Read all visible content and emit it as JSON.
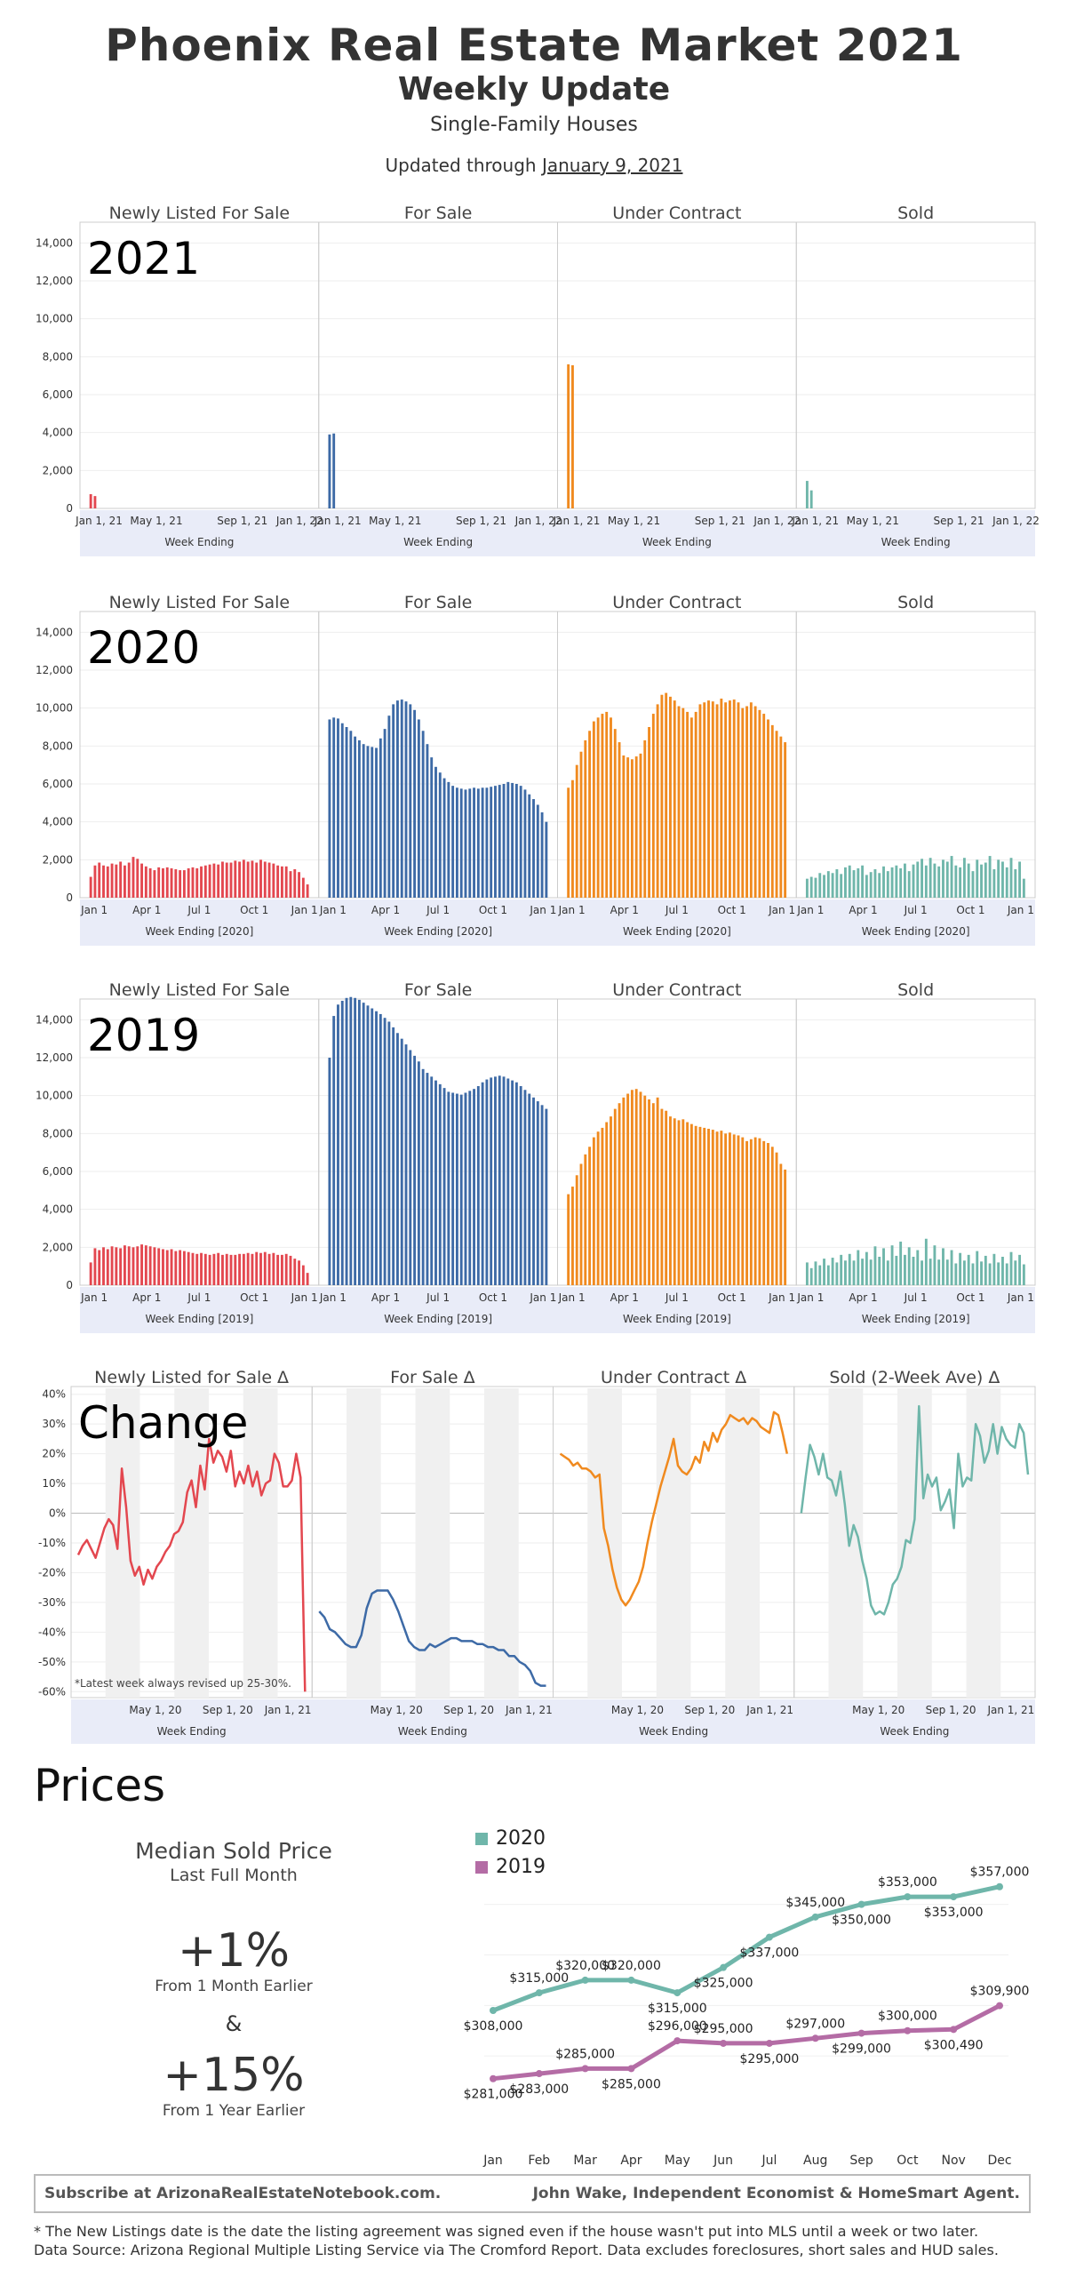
{
  "header": {
    "title": "Phoenix Real Estate Market 2021",
    "subtitle": "Weekly Update",
    "subsubtitle": "Single-Family Houses",
    "updated_prefix": "Updated through ",
    "updated_date": "January 9, 2021"
  },
  "colors": {
    "new": "#e3474f",
    "forsale": "#3d6aa6",
    "contract": "#f08a1f",
    "sold": "#6fb6aa",
    "p2020": "#6fb6aa",
    "p2019": "#b46ca5",
    "band": "#e9ecf8"
  },
  "chart_data": [
    {
      "type": "bar",
      "year_label": "2021",
      "panels": [
        "Newly Listed For Sale",
        "For Sale",
        "Under Contract",
        "Sold"
      ],
      "ylim": [
        0,
        15000
      ],
      "yticks": [
        "0",
        "2,000",
        "4,000",
        "6,000",
        "8,000",
        "10,000",
        "12,000",
        "14,000"
      ],
      "xticks": [
        "Jan 1, 21",
        "May 1, 21",
        "Sep 1, 21",
        "Jan 1, 22"
      ],
      "xlabel": "Week Ending",
      "series": [
        {
          "name": "Newly Listed For Sale",
          "values": [
            750,
            650
          ]
        },
        {
          "name": "For Sale",
          "values": [
            3900,
            3950
          ]
        },
        {
          "name": "Under Contract",
          "values": [
            7600,
            7550
          ]
        },
        {
          "name": "Sold",
          "values": [
            1450,
            950
          ]
        }
      ]
    },
    {
      "type": "bar",
      "year_label": "2020",
      "panels": [
        "Newly Listed For Sale",
        "For Sale",
        "Under Contract",
        "Sold"
      ],
      "ylim": [
        0,
        15000
      ],
      "yticks": [
        "0",
        "2,000",
        "4,000",
        "6,000",
        "8,000",
        "10,000",
        "12,000",
        "14,000"
      ],
      "xticks": [
        "Jan 1",
        "Apr 1",
        "Jul 1",
        "Oct 1",
        "Jan 1"
      ],
      "xlabel": "Week Ending [2020]",
      "series": [
        {
          "name": "Newly Listed For Sale",
          "values": [
            1100,
            1700,
            1850,
            1700,
            1650,
            1800,
            1750,
            1900,
            1700,
            1850,
            2150,
            2050,
            1800,
            1650,
            1550,
            1450,
            1600,
            1550,
            1600,
            1550,
            1500,
            1450,
            1450,
            1550,
            1600,
            1550,
            1650,
            1700,
            1750,
            1800,
            1750,
            1900,
            1850,
            1850,
            1950,
            1900,
            2000,
            1900,
            1950,
            1850,
            2000,
            1900,
            1850,
            1800,
            1700,
            1650,
            1650,
            1400,
            1500,
            1350,
            1050,
            700
          ]
        },
        {
          "name": "For Sale",
          "values": [
            9400,
            9500,
            9450,
            9200,
            9000,
            8800,
            8500,
            8300,
            8100,
            8000,
            7950,
            7900,
            8400,
            8900,
            9600,
            10200,
            10400,
            10450,
            10350,
            10200,
            9900,
            9400,
            8800,
            8100,
            7400,
            6900,
            6600,
            6300,
            6100,
            5900,
            5800,
            5750,
            5700,
            5750,
            5800,
            5750,
            5800,
            5800,
            5850,
            5900,
            5950,
            6000,
            6100,
            6050,
            6000,
            5900,
            5700,
            5450,
            5200,
            4900,
            4500,
            4000
          ]
        },
        {
          "name": "Under Contract",
          "values": [
            5800,
            6200,
            7000,
            7700,
            8300,
            8800,
            9300,
            9500,
            9700,
            9800,
            9500,
            8900,
            8200,
            7500,
            7400,
            7300,
            7450,
            7600,
            8300,
            9000,
            9700,
            10200,
            10700,
            10800,
            10600,
            10400,
            10100,
            10000,
            9800,
            9500,
            9800,
            10200,
            10300,
            10400,
            10350,
            10200,
            10500,
            10300,
            10400,
            10450,
            10300,
            10000,
            10100,
            10300,
            10100,
            9900,
            9700,
            9400,
            9100,
            8800,
            8500,
            8200
          ]
        },
        {
          "name": "Sold",
          "values": [
            1000,
            1100,
            1050,
            1300,
            1200,
            1400,
            1300,
            1500,
            1250,
            1600,
            1700,
            1450,
            1550,
            1700,
            1200,
            1350,
            1500,
            1300,
            1650,
            1400,
            1600,
            1700,
            1550,
            1800,
            1400,
            1750,
            1900,
            2050,
            1700,
            2100,
            1800,
            1650,
            2000,
            1900,
            2200,
            1700,
            1600,
            2100,
            1800,
            1400,
            2000,
            1750,
            1850,
            2200,
            1500,
            2000,
            1900,
            1600,
            2100,
            1500,
            1900,
            1000
          ]
        }
      ]
    },
    {
      "type": "bar",
      "year_label": "2019",
      "panels": [
        "Newly Listed For Sale",
        "For Sale",
        "Under Contract",
        "Sold"
      ],
      "ylim": [
        0,
        15000
      ],
      "yticks": [
        "0",
        "2,000",
        "4,000",
        "6,000",
        "8,000",
        "10,000",
        "12,000",
        "14,000"
      ],
      "xticks": [
        "Jan 1",
        "Apr 1",
        "Jul 1",
        "Oct 1",
        "Jan 1"
      ],
      "xlabel": "Week Ending [2019]",
      "series": [
        {
          "name": "Newly Listed For Sale",
          "values": [
            1200,
            1950,
            1850,
            2000,
            1900,
            2050,
            2000,
            1950,
            2100,
            2050,
            2000,
            2050,
            2150,
            2100,
            2050,
            2000,
            1950,
            1900,
            1850,
            1900,
            1800,
            1850,
            1800,
            1750,
            1700,
            1650,
            1700,
            1650,
            1600,
            1650,
            1700,
            1600,
            1650,
            1600,
            1600,
            1650,
            1650,
            1700,
            1650,
            1750,
            1700,
            1750,
            1650,
            1700,
            1600,
            1600,
            1650,
            1550,
            1400,
            1300,
            1050,
            650
          ]
        },
        {
          "name": "For Sale",
          "values": [
            12000,
            14200,
            14800,
            15000,
            15150,
            15200,
            15150,
            15050,
            14900,
            14750,
            14600,
            14450,
            14300,
            14100,
            13900,
            13600,
            13300,
            13000,
            12700,
            12400,
            12100,
            11800,
            11400,
            11200,
            11000,
            10800,
            10600,
            10400,
            10200,
            10150,
            10100,
            10050,
            10150,
            10250,
            10350,
            10500,
            10700,
            10850,
            10950,
            11000,
            11050,
            11000,
            10900,
            10800,
            10700,
            10500,
            10300,
            10100,
            9900,
            9700,
            9500,
            9300
          ]
        },
        {
          "name": "Under Contract",
          "values": [
            4800,
            5200,
            5800,
            6400,
            6900,
            7300,
            7800,
            8100,
            8300,
            8600,
            8900,
            9300,
            9600,
            9900,
            10100,
            10300,
            10350,
            10200,
            10000,
            9800,
            9600,
            9900,
            9300,
            9200,
            8900,
            8800,
            8700,
            8750,
            8600,
            8500,
            8400,
            8350,
            8300,
            8250,
            8200,
            8100,
            8150,
            8000,
            8050,
            7950,
            7900,
            7800,
            7600,
            7700,
            7800,
            7750,
            7600,
            7500,
            7300,
            7000,
            6400,
            6100
          ]
        },
        {
          "name": "Sold",
          "values": [
            1200,
            900,
            1250,
            1050,
            1400,
            1050,
            1450,
            1200,
            1600,
            1300,
            1650,
            1300,
            1850,
            1400,
            1750,
            1350,
            2050,
            1500,
            1950,
            1300,
            2100,
            1550,
            2300,
            1600,
            2000,
            1500,
            1850,
            1300,
            2450,
            1400,
            2100,
            1350,
            1950,
            1350,
            1850,
            1150,
            1700,
            1300,
            1600,
            1150,
            1800,
            1250,
            1550,
            1150,
            1650,
            1200,
            1500,
            1150,
            1750,
            1300,
            1600,
            1100
          ]
        }
      ]
    },
    {
      "type": "line",
      "year_label": "Change",
      "panels": [
        "Newly Listed for Sale Δ",
        "For Sale Δ",
        "Under Contract Δ",
        "Sold (2-Week Ave) Δ"
      ],
      "ylim": [
        -0.62,
        0.42
      ],
      "yticks": [
        "-60%",
        "-50%",
        "-40%",
        "-30%",
        "-20%",
        "-10%",
        "0%",
        "10%",
        "20%",
        "30%",
        "40%"
      ],
      "xticks": [
        "May 1, 20",
        "Sep 1, 20",
        "Jan 1, 21"
      ],
      "xlabel": "Week Ending",
      "note": "*Latest week always revised up 25-30%.",
      "series": [
        {
          "name": "Newly Listed for Sale Δ",
          "values": [
            -0.14,
            -0.11,
            -0.09,
            -0.12,
            -0.15,
            -0.1,
            -0.05,
            -0.02,
            -0.04,
            -0.12,
            0.15,
            0.02,
            -0.16,
            -0.21,
            -0.18,
            -0.24,
            -0.19,
            -0.22,
            -0.18,
            -0.16,
            -0.13,
            -0.11,
            -0.07,
            -0.06,
            -0.03,
            0.07,
            0.11,
            0.02,
            0.16,
            0.08,
            0.25,
            0.17,
            0.21,
            0.19,
            0.14,
            0.21,
            0.09,
            0.14,
            0.1,
            0.16,
            0.09,
            0.14,
            0.06,
            0.1,
            0.11,
            0.2,
            0.17,
            0.09,
            0.09,
            0.11,
            0.2,
            0.12,
            -0.6
          ]
        },
        {
          "name": "For Sale Δ",
          "values": [
            -0.33,
            -0.35,
            -0.39,
            -0.4,
            -0.42,
            -0.44,
            -0.45,
            -0.45,
            -0.41,
            -0.32,
            -0.27,
            -0.26,
            -0.26,
            -0.26,
            -0.29,
            -0.33,
            -0.38,
            -0.43,
            -0.45,
            -0.46,
            -0.46,
            -0.44,
            -0.45,
            -0.44,
            -0.43,
            -0.42,
            -0.42,
            -0.43,
            -0.43,
            -0.43,
            -0.44,
            -0.44,
            -0.45,
            -0.45,
            -0.46,
            -0.46,
            -0.48,
            -0.48,
            -0.5,
            -0.51,
            -0.53,
            -0.57,
            -0.58,
            -0.58
          ]
        },
        {
          "name": "Under Contract Δ",
          "values": [
            0.2,
            0.19,
            0.18,
            0.16,
            0.17,
            0.15,
            0.15,
            0.14,
            0.12,
            0.13,
            -0.05,
            -0.11,
            -0.19,
            -0.25,
            -0.29,
            -0.31,
            -0.29,
            -0.26,
            -0.23,
            -0.18,
            -0.1,
            -0.03,
            0.03,
            0.09,
            0.14,
            0.19,
            0.25,
            0.16,
            0.14,
            0.13,
            0.15,
            0.19,
            0.17,
            0.24,
            0.21,
            0.27,
            0.24,
            0.28,
            0.3,
            0.33,
            0.32,
            0.31,
            0.32,
            0.3,
            0.32,
            0.31,
            0.29,
            0.28,
            0.27,
            0.34,
            0.33,
            0.27,
            0.2
          ]
        },
        {
          "name": "Sold (2-Week Ave) Δ",
          "values": [
            0.0,
            0.12,
            0.23,
            0.19,
            0.13,
            0.2,
            0.12,
            0.11,
            0.06,
            0.14,
            0.03,
            -0.11,
            -0.04,
            -0.08,
            -0.16,
            -0.22,
            -0.31,
            -0.34,
            -0.33,
            -0.34,
            -0.3,
            -0.24,
            -0.22,
            -0.18,
            -0.09,
            -0.1,
            -0.02,
            0.36,
            0.05,
            0.13,
            0.09,
            0.12,
            0.01,
            0.04,
            0.08,
            -0.05,
            0.2,
            0.09,
            0.12,
            0.11,
            0.3,
            0.26,
            0.17,
            0.21,
            0.3,
            0.2,
            0.29,
            0.25,
            0.23,
            0.22,
            0.3,
            0.27,
            0.13
          ]
        }
      ]
    },
    {
      "type": "line",
      "categories": [
        "Jan",
        "Feb",
        "Mar",
        "Apr",
        "May",
        "Jun",
        "Jul",
        "Aug",
        "Sep",
        "Oct",
        "Nov",
        "Dec"
      ],
      "series": [
        {
          "name": "2020",
          "values": [
            308000,
            315000,
            320000,
            320000,
            315000,
            325000,
            337000,
            345000,
            350000,
            353000,
            353000,
            357000
          ],
          "labels": [
            "$308,000",
            "$315,000",
            "$320,000",
            "$320,000",
            "$315,000",
            "$325,000",
            "$337,000",
            "$345,000",
            "$350,000",
            "$353,000",
            "$353,000",
            "$357,000"
          ]
        },
        {
          "name": "2019",
          "values": [
            281000,
            283000,
            285000,
            285000,
            296000,
            295000,
            295000,
            297000,
            299000,
            300000,
            300490,
            309900
          ],
          "labels": [
            "$281,000",
            "$283,000",
            "$285,000",
            "$285,000",
            "$296,000",
            "$295,000",
            "$295,000",
            "$297,000",
            "$299,000",
            "$300,000",
            "$300,490",
            "$309,900"
          ]
        }
      ],
      "ylim": [
        270000,
        365000
      ]
    }
  ],
  "prices": {
    "title": "Prices",
    "median_title": "Median Sold Price",
    "median_sub": "Last Full Month",
    "m1_value": "+1%",
    "m1_label": "From 1 Month Earlier",
    "amp": "&",
    "y1_value": "+15%",
    "y1_label": "From 1 Year Earlier"
  },
  "footer": {
    "left": "Subscribe at ArizonaRealEstateNotebook.com.",
    "right": "John Wake, Independent Economist & HomeSmart Agent."
  },
  "notes": [
    "* The New Listings date is the date the listing agreement was signed even if the house wasn't put into MLS until a week or two later.",
    "Data Source: Arizona Regional Multiple Listing Service via The Cromford Report. Data excludes foreclosures, short sales and HUD sales."
  ]
}
